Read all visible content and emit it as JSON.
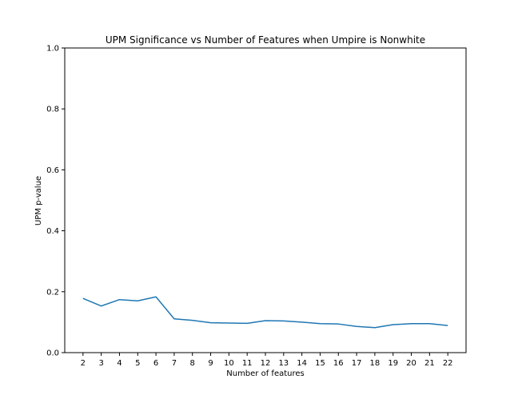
{
  "chart_data": {
    "type": "line",
    "title": "UPM Significance vs Number of Features when Umpire is Nonwhite",
    "xlabel": "Number of features",
    "ylabel": "UPM p-value",
    "x": [
      2,
      3,
      4,
      5,
      6,
      7,
      8,
      9,
      10,
      11,
      12,
      13,
      14,
      15,
      16,
      17,
      18,
      19,
      20,
      21,
      22
    ],
    "series": [
      {
        "values": [
          0.178,
          0.153,
          0.174,
          0.17,
          0.183,
          0.111,
          0.106,
          0.098,
          0.097,
          0.096,
          0.105,
          0.104,
          0.1,
          0.095,
          0.094,
          0.086,
          0.082,
          0.092,
          0.095,
          0.095,
          0.089
        ],
        "color": "#1f77b4"
      }
    ],
    "xlim": [
      1,
      23
    ],
    "ylim": [
      0.0,
      1.0
    ],
    "yticks": [
      "0.0",
      "0.2",
      "0.4",
      "0.6",
      "0.8",
      "1.0"
    ],
    "xticks": [
      "2",
      "3",
      "4",
      "5",
      "6",
      "7",
      "8",
      "9",
      "10",
      "11",
      "12",
      "13",
      "14",
      "15",
      "16",
      "17",
      "18",
      "19",
      "20",
      "21",
      "22"
    ],
    "grid": false,
    "legend": "none"
  }
}
